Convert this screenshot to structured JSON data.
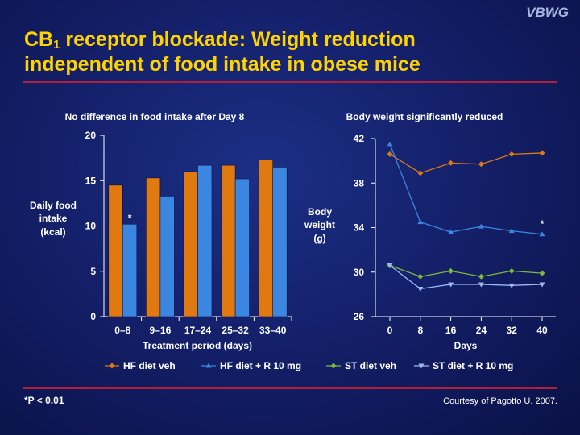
{
  "header": {
    "brand": "VBWG",
    "title_prefix": "CB",
    "title_sub": "1",
    "title_line1_rest": " receptor blockade: Weight reduction",
    "title_line2": "independent of food intake in obese mice"
  },
  "footer": {
    "footnote": "*P < 0.01",
    "courtesy": "Courtesy of Pagotto U. 2007."
  },
  "colors": {
    "hf_veh": "#e07a10",
    "hf_r10": "#3a86e0",
    "st_veh": "#7db83a",
    "st_r10": "#9bb8f0",
    "title": "#ffd200",
    "rule": "#b0203a"
  },
  "legend": [
    {
      "label": "HF diet veh",
      "color": "#e07a10",
      "marker": "diamond"
    },
    {
      "label": "HF diet + R 10 mg",
      "color": "#3a86e0",
      "marker": "triangle-up"
    },
    {
      "label": "ST diet veh",
      "color": "#7db83a",
      "marker": "diamond"
    },
    {
      "label": "ST diet + R 10 mg",
      "color": "#9bb8f0",
      "marker": "triangle-down"
    }
  ],
  "chart_data": [
    {
      "type": "bar",
      "title": "No difference in food intake after Day 8",
      "xlabel": "Treatment period (days)",
      "ylabel_lines": [
        "Daily food",
        "intake",
        "(kcal)"
      ],
      "categories": [
        "0–8",
        "9–16",
        "17–24",
        "25–32",
        "33–40"
      ],
      "series": [
        {
          "name": "HF diet veh",
          "values": [
            14.5,
            15.3,
            16.0,
            16.7,
            17.3
          ]
        },
        {
          "name": "HF diet + R 10 mg",
          "values": [
            10.2,
            13.3,
            16.7,
            15.2,
            16.5
          ]
        }
      ],
      "ylim": [
        0,
        20
      ],
      "yticks": [
        "0",
        "5",
        "10",
        "15",
        "20"
      ],
      "annotations": [
        {
          "text": "*",
          "category": "0–8",
          "series": "HF diet + R 10 mg"
        }
      ]
    },
    {
      "type": "line",
      "title": "Body weight significantly reduced",
      "xlabel": "Days",
      "ylabel_lines": [
        "Body",
        "weight",
        "(g)"
      ],
      "x": [
        0,
        8,
        16,
        24,
        32,
        40
      ],
      "xticks": [
        "0",
        "8",
        "16",
        "24",
        "32",
        "40"
      ],
      "series": [
        {
          "name": "HF diet veh",
          "values": [
            40.6,
            38.9,
            39.8,
            39.7,
            40.6,
            40.7
          ]
        },
        {
          "name": "HF diet + R 10 mg",
          "values": [
            41.5,
            34.5,
            33.6,
            34.1,
            33.7,
            33.4
          ]
        },
        {
          "name": "ST diet veh",
          "values": [
            30.6,
            29.6,
            30.1,
            29.6,
            30.1,
            29.9
          ]
        },
        {
          "name": "ST diet + R 10 mg",
          "values": [
            30.6,
            28.5,
            28.9,
            28.9,
            28.8,
            28.9
          ]
        }
      ],
      "ylim": [
        26,
        42
      ],
      "yticks": [
        "26",
        "30",
        "34",
        "38",
        "42"
      ],
      "annotations": [
        {
          "text": "*",
          "x": 40,
          "series": "HF diet + R 10 mg"
        }
      ]
    }
  ]
}
